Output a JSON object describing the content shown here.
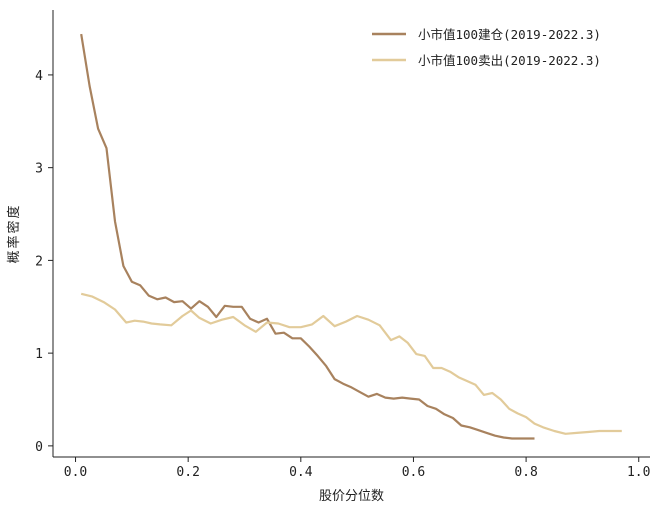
{
  "chart_data": {
    "type": "line",
    "xlabel": "股价分位数",
    "ylabel": "概率密度",
    "xlim": [
      -0.04,
      1.02
    ],
    "ylim": [
      -0.12,
      4.7
    ],
    "xticks": [
      0.0,
      0.2,
      0.4,
      0.6,
      0.8,
      1.0
    ],
    "xtick_labels": [
      "0.0",
      "0.2",
      "0.4",
      "0.6",
      "0.8",
      "1.0"
    ],
    "yticks": [
      0,
      1,
      2,
      3,
      4
    ],
    "ytick_labels": [
      "0",
      "1",
      "2",
      "3",
      "4"
    ],
    "grid": false,
    "legend_position": "top-right",
    "series": [
      {
        "name": "小市值100建仓(2019-2022.3)",
        "color": "#a8825e",
        "x": [
          0.01,
          0.025,
          0.04,
          0.055,
          0.07,
          0.085,
          0.1,
          0.115,
          0.13,
          0.145,
          0.16,
          0.175,
          0.19,
          0.205,
          0.22,
          0.235,
          0.25,
          0.265,
          0.28,
          0.295,
          0.31,
          0.325,
          0.34,
          0.355,
          0.37,
          0.385,
          0.4,
          0.415,
          0.43,
          0.445,
          0.46,
          0.475,
          0.49,
          0.505,
          0.52,
          0.535,
          0.55,
          0.565,
          0.58,
          0.595,
          0.61,
          0.625,
          0.64,
          0.655,
          0.67,
          0.685,
          0.7,
          0.715,
          0.73,
          0.745,
          0.76,
          0.775,
          0.79,
          0.805,
          0.815
        ],
        "y": [
          4.44,
          3.88,
          3.42,
          3.21,
          2.42,
          1.94,
          1.77,
          1.73,
          1.62,
          1.58,
          1.6,
          1.55,
          1.56,
          1.48,
          1.56,
          1.5,
          1.39,
          1.51,
          1.5,
          1.5,
          1.37,
          1.33,
          1.37,
          1.21,
          1.22,
          1.16,
          1.16,
          1.07,
          0.97,
          0.86,
          0.72,
          0.67,
          0.63,
          0.58,
          0.53,
          0.56,
          0.52,
          0.51,
          0.52,
          0.51,
          0.5,
          0.43,
          0.4,
          0.34,
          0.3,
          0.22,
          0.2,
          0.17,
          0.14,
          0.11,
          0.09,
          0.08,
          0.08,
          0.08,
          0.08
        ]
      },
      {
        "name": "小市值100卖出(2019-2022.3)",
        "color": "#e2cb9a",
        "x": [
          0.01,
          0.03,
          0.05,
          0.07,
          0.09,
          0.105,
          0.12,
          0.135,
          0.15,
          0.17,
          0.19,
          0.205,
          0.22,
          0.24,
          0.26,
          0.28,
          0.3,
          0.32,
          0.34,
          0.36,
          0.38,
          0.4,
          0.42,
          0.44,
          0.46,
          0.48,
          0.5,
          0.52,
          0.54,
          0.56,
          0.575,
          0.59,
          0.605,
          0.62,
          0.635,
          0.65,
          0.665,
          0.68,
          0.695,
          0.71,
          0.725,
          0.74,
          0.755,
          0.77,
          0.785,
          0.8,
          0.815,
          0.83,
          0.85,
          0.87,
          0.89,
          0.91,
          0.93,
          0.95,
          0.97
        ],
        "y": [
          1.64,
          1.61,
          1.55,
          1.47,
          1.33,
          1.35,
          1.34,
          1.32,
          1.31,
          1.3,
          1.4,
          1.46,
          1.38,
          1.32,
          1.36,
          1.39,
          1.3,
          1.23,
          1.33,
          1.32,
          1.28,
          1.28,
          1.31,
          1.4,
          1.29,
          1.34,
          1.4,
          1.36,
          1.3,
          1.14,
          1.18,
          1.11,
          0.99,
          0.97,
          0.84,
          0.84,
          0.8,
          0.74,
          0.7,
          0.66,
          0.55,
          0.57,
          0.5,
          0.4,
          0.35,
          0.31,
          0.24,
          0.2,
          0.16,
          0.13,
          0.14,
          0.15,
          0.16,
          0.16,
          0.16
        ]
      }
    ]
  }
}
